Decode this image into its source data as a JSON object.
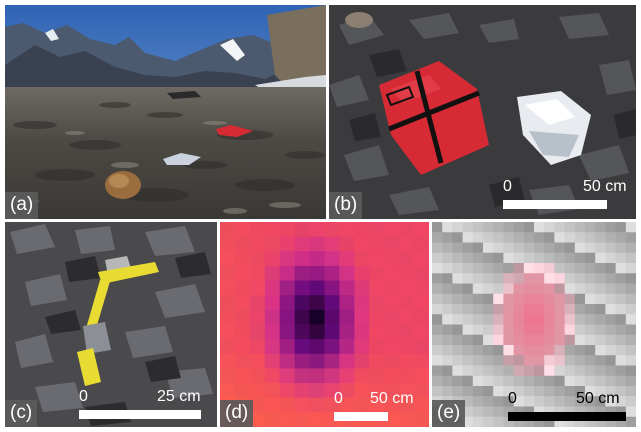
{
  "figure": {
    "panels": [
      {
        "label": "(a)",
        "subject": "wide view of rocky alpine moraine with red and silver targets",
        "scale_bar": null
      },
      {
        "label": "(b)",
        "subject": "red target with black cross and silver reflective target on dark rocks",
        "scale_bar": {
          "zero": "0",
          "length": "50 cm"
        }
      },
      {
        "label": "(c)",
        "subject": "yellow tape marker on slate rocks",
        "scale_bar": {
          "zero": "0",
          "length": "25 cm"
        }
      },
      {
        "label": "(d)",
        "subject": "thermal image showing cold dark spot",
        "scale_bar": {
          "zero": "0",
          "length": "50 cm"
        }
      },
      {
        "label": "(e)",
        "subject": "pixelated image showing pink target",
        "scale_bar": {
          "zero": "0",
          "length": "50 cm"
        }
      }
    ]
  },
  "colors": {
    "scale_bar_white": "#ffffff",
    "scale_bar_black": "#000000",
    "label_bg": "#5a5a5a",
    "target_red": "#d62a35",
    "tape_yellow": "#e8dc32",
    "thermal_hot": "#e8465f",
    "thermal_cold": "#0a0010"
  }
}
